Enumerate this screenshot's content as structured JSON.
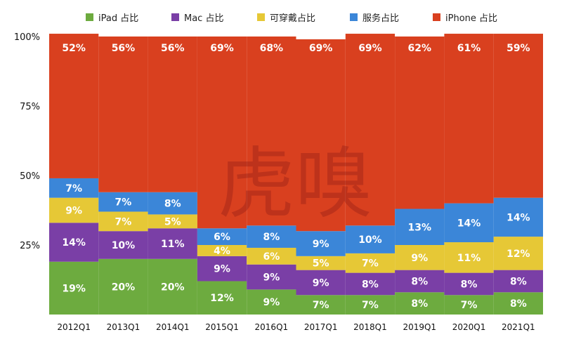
{
  "chart_data": {
    "type": "bar",
    "stacked": true,
    "title": "",
    "xlabel": "",
    "ylabel": "",
    "ylim": [
      0,
      100
    ],
    "y_ticks": [
      "25%",
      "50%",
      "75%",
      "100%"
    ],
    "legend_position": "top",
    "categories": [
      "2012Q1",
      "2013Q1",
      "2014Q1",
      "2015Q1",
      "2016Q1",
      "2017Q1",
      "2018Q1",
      "2019Q1",
      "2020Q1",
      "2021Q1"
    ],
    "series": [
      {
        "name": "iPad 占比",
        "color": "#6dab3f",
        "values": [
          19,
          20,
          20,
          12,
          9,
          7,
          7,
          8,
          7,
          8
        ]
      },
      {
        "name": "Mac 占比",
        "color": "#7a3fa6",
        "values": [
          14,
          10,
          11,
          9,
          9,
          9,
          8,
          8,
          8,
          8
        ]
      },
      {
        "name": "可穿戴占比",
        "color": "#e6c836",
        "values": [
          9,
          7,
          5,
          4,
          6,
          5,
          7,
          9,
          11,
          12
        ]
      },
      {
        "name": "服务占比",
        "color": "#3b86d8",
        "values": [
          7,
          7,
          8,
          6,
          8,
          9,
          10,
          13,
          14,
          14
        ]
      },
      {
        "name": "iPhone 占比",
        "color": "#d9401f",
        "values": [
          52,
          56,
          56,
          69,
          68,
          69,
          69,
          62,
          61,
          59
        ]
      }
    ],
    "watermark": "虎嗅"
  }
}
